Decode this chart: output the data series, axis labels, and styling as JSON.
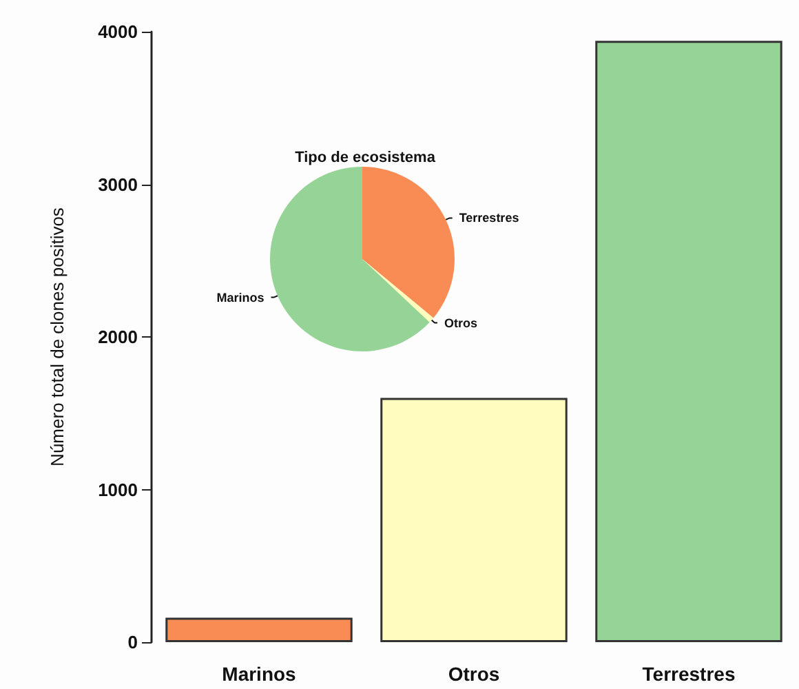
{
  "chart_data": [
    {
      "type": "bar",
      "ylabel": "Número total de clones positivos",
      "categories": [
        "Marinos",
        "Otros",
        "Terrestres"
      ],
      "values": [
        160,
        1600,
        3940
      ],
      "colors": [
        "#f98c55",
        "#fffcbe",
        "#96d396"
      ],
      "ylim": [
        0,
        4000
      ],
      "yticks": [
        0,
        1000,
        2000,
        3000,
        4000
      ],
      "grid": false,
      "legend": false
    },
    {
      "type": "pie",
      "title": "Tipo de ecosistema",
      "categories": [
        "Terrestres",
        "Otros",
        "Marinos"
      ],
      "values": [
        36,
        1,
        63
      ],
      "colors": [
        "#f98c55",
        "#fffcbe",
        "#96d396"
      ],
      "legend": false
    }
  ]
}
